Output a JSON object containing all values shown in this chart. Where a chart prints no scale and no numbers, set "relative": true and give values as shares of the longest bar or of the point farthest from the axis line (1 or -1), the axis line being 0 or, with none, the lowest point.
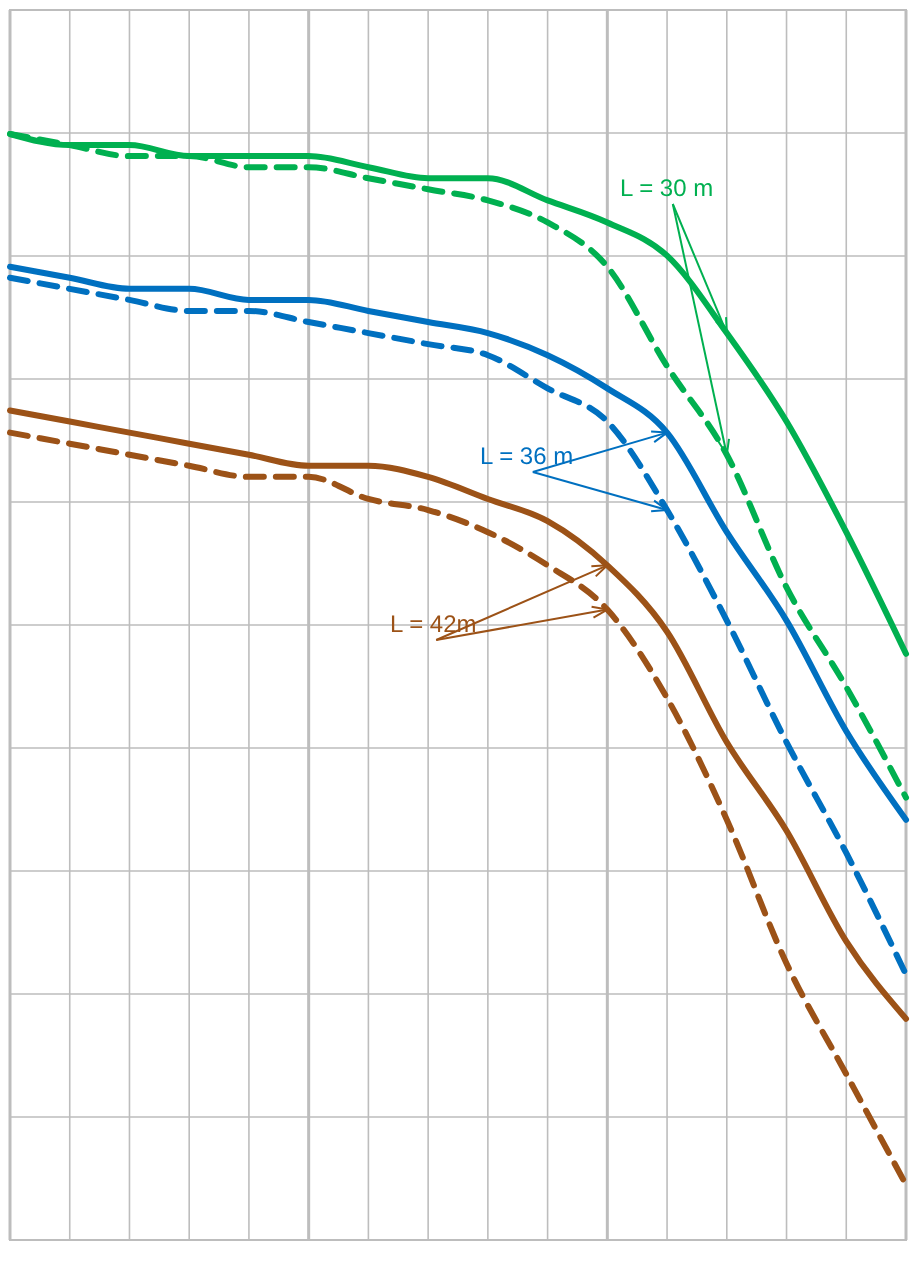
{
  "chart_data": {
    "type": "line",
    "relative": true,
    "grid": true,
    "categories": [
      null,
      null,
      null,
      null,
      null,
      null,
      null,
      null,
      null,
      null,
      null,
      null,
      null,
      null,
      null,
      null
    ],
    "series": [
      {
        "name": "L = 30 m",
        "color": "#00b050",
        "line_style": "solid",
        "values": [
          1.0,
          0.99,
          0.99,
          0.98,
          0.98,
          0.98,
          0.97,
          0.96,
          0.96,
          0.94,
          0.92,
          0.89,
          0.82,
          0.74,
          0.64,
          0.53
        ]
      },
      {
        "color": "#00b050",
        "line_style": "dashed",
        "values": [
          1.0,
          0.99,
          0.98,
          0.98,
          0.97,
          0.97,
          0.96,
          0.95,
          0.94,
          0.92,
          0.88,
          0.79,
          0.71,
          0.59,
          0.5,
          0.4
        ]
      },
      {
        "name": "L = 36 m",
        "color": "#0070c0",
        "line_style": "solid",
        "values": [
          0.88,
          0.87,
          0.86,
          0.86,
          0.85,
          0.85,
          0.84,
          0.83,
          0.82,
          0.8,
          0.77,
          0.73,
          0.64,
          0.56,
          0.46,
          0.38
        ]
      },
      {
        "color": "#0070c0",
        "line_style": "dashed",
        "values": [
          0.87,
          0.86,
          0.85,
          0.84,
          0.84,
          0.83,
          0.82,
          0.81,
          0.8,
          0.77,
          0.74,
          0.66,
          0.56,
          0.45,
          0.35,
          0.24
        ]
      },
      {
        "name": "L = 42m",
        "color": "#9c5217",
        "line_style": "solid",
        "values": [
          0.75,
          0.74,
          0.73,
          0.72,
          0.71,
          0.7,
          0.7,
          0.69,
          0.67,
          0.65,
          0.61,
          0.55,
          0.45,
          0.37,
          0.27,
          0.2
        ]
      },
      {
        "color": "#9c5217",
        "line_style": "dashed",
        "values": [
          0.73,
          0.72,
          0.71,
          0.7,
          0.69,
          0.69,
          0.67,
          0.66,
          0.64,
          0.61,
          0.57,
          0.49,
          0.38,
          0.25,
          0.15,
          0.05
        ]
      }
    ]
  }
}
